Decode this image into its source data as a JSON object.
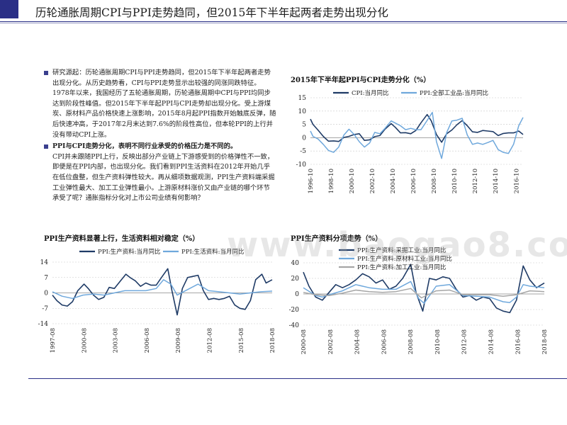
{
  "slide": {
    "title": "历轮通胀周期CPI与PPI走势趋同，但2015年下半年起两者走势出现分化",
    "watermark": "www.baogao8.com"
  },
  "text": {
    "bullet1": "研究源起：历轮通胀周期CPI与PPI走势趋同，但2015年下半年起两者走势出现分化。从历史趋势看，CPI与PPI走势显示出较强的同涨同跌特征。1978年以来，我国经历了五轮通胀周期，历轮通胀周期中CPI与PPI均同步达到阶段性峰值。但2015年下半年起PPI与CPI走势却出现分化。受上游煤炭、原材料产品价格快速上涨影响，2015年8月起PPI指数开始触底反弹，随后快速冲高，于2017年2月末达到7.6%的阶段性高位，但本轮PPI的上行并没有带动CPI上涨。",
    "bullet2_head": "PPI与CPI走势分化，表明不同行业承受的价格压力是不同的。",
    "bullet2_body": "CPI并未跟随PPI上行，反映出部分产业链上下游感受到的价格弹性不一致，即便是在PPI内部，也出现分化。我们看到PPI生活资料在2012年开始几乎在低位盘整，但生产资料弹性较大。再从细项数据观测，PPI生产资料端采掘工业弹性最大、加工工业弹性最小。上游原材料涨价又由产业链的哪个环节承受了呢？通胀指标分化对上市公司业绩有何影响？"
  },
  "chart_data": [
    {
      "type": "line",
      "title": "2015年下半年起PPI与CPI走势分化（%）",
      "legend_position": "top",
      "ylim": [
        -10,
        15
      ],
      "yticks": [
        15,
        10,
        5,
        0,
        -5,
        -10
      ],
      "xticks": [
        "1996-10",
        "1998-10",
        "2000-10",
        "2002-10",
        "2004-10",
        "2006-10",
        "2008-10",
        "2010-10",
        "2012-10",
        "2014-10",
        "2016-10"
      ],
      "x_range": [
        1996.75,
        2017.42
      ],
      "series": [
        {
          "name": "CPI:当月同比",
          "color": "#1f3b66",
          "x": [
            1996.75,
            1997.0,
            1997.5,
            1998.0,
            1998.5,
            1999.0,
            1999.5,
            2000.0,
            2000.5,
            2001.0,
            2001.5,
            2002.0,
            2002.5,
            2003.0,
            2003.5,
            2004.0,
            2004.6,
            2005.0,
            2005.5,
            2006.0,
            2006.5,
            2007.0,
            2007.5,
            2008.1,
            2008.5,
            2009.0,
            2009.5,
            2010.0,
            2010.5,
            2011.0,
            2011.5,
            2012.0,
            2012.5,
            2013.0,
            2013.5,
            2014.0,
            2014.5,
            2015.0,
            2015.5,
            2016.0,
            2016.5,
            2017.0,
            2017.42
          ],
          "y": [
            7.0,
            5.0,
            2.8,
            0.5,
            -1.3,
            -1.2,
            -1.4,
            0.1,
            0.5,
            1.2,
            1.5,
            -1.0,
            -0.8,
            0.4,
            0.8,
            3.2,
            5.3,
            3.9,
            1.8,
            1.9,
            1.5,
            2.7,
            5.6,
            8.7,
            6.3,
            1.2,
            -1.7,
            1.5,
            2.9,
            4.9,
            6.4,
            4.5,
            2.2,
            2.0,
            2.7,
            2.5,
            2.3,
            0.8,
            1.6,
            1.8,
            1.8,
            2.5,
            1.2
          ]
        },
        {
          "name": "PPI:全部工业品:当月同比",
          "color": "#6fa8dc",
          "x": [
            1996.75,
            1997.0,
            1997.5,
            1998.0,
            1998.5,
            1999.0,
            1999.5,
            2000.0,
            2000.5,
            2001.0,
            2001.5,
            2002.0,
            2002.5,
            2003.0,
            2003.5,
            2004.0,
            2004.6,
            2005.0,
            2005.5,
            2006.0,
            2006.5,
            2007.0,
            2007.5,
            2008.1,
            2008.6,
            2009.0,
            2009.5,
            2010.0,
            2010.5,
            2011.0,
            2011.5,
            2012.0,
            2012.5,
            2013.0,
            2013.5,
            2014.0,
            2014.5,
            2015.0,
            2015.5,
            2016.0,
            2016.5,
            2017.0,
            2017.42
          ],
          "y": [
            2.5,
            0.5,
            -0.5,
            -2.5,
            -4.8,
            -5.5,
            -3.5,
            1.0,
            3.2,
            1.2,
            -1.5,
            -3.5,
            -2.0,
            2.0,
            1.5,
            3.5,
            6.3,
            5.5,
            4.5,
            3.0,
            3.5,
            3.0,
            3.0,
            6.5,
            9.5,
            -1.5,
            -7.8,
            2.0,
            6.3,
            6.6,
            7.3,
            1.0,
            -2.5,
            -2.0,
            -2.5,
            -1.8,
            -1.0,
            -4.5,
            -5.5,
            -5.9,
            -2.5,
            4.5,
            7.6
          ]
        }
      ]
    },
    {
      "type": "line",
      "title": "PPI生产资料显著上行，生活资料相对稳定（%）",
      "legend_position": "top",
      "ylim": [
        -14,
        14
      ],
      "yticks": [
        14,
        7,
        0,
        -7,
        -14
      ],
      "xticks": [
        "1997-08",
        "2000-08",
        "2003-08",
        "2006-08",
        "2009-08",
        "2012-08",
        "2015-08",
        "2018-08"
      ],
      "x_range": [
        1997.58,
        2018.58
      ],
      "series": [
        {
          "name": "PPI:生产资料:当月同比",
          "color": "#1f3b66",
          "x": [
            1997.58,
            1998.0,
            1998.5,
            1999.0,
            1999.5,
            2000.0,
            2000.6,
            2001.0,
            2001.5,
            2002.0,
            2002.5,
            2003.0,
            2003.5,
            2004.0,
            2004.6,
            2005.0,
            2005.5,
            2006.0,
            2006.5,
            2007.0,
            2007.5,
            2008.0,
            2008.6,
            2009.0,
            2009.5,
            2010.0,
            2010.5,
            2011.0,
            2011.5,
            2012.0,
            2012.5,
            2013.0,
            2013.5,
            2014.0,
            2014.5,
            2015.0,
            2015.5,
            2016.0,
            2016.5,
            2017.0,
            2017.6,
            2018.0,
            2018.58
          ],
          "y": [
            -1.0,
            -3.5,
            -5.5,
            -6.0,
            -4.0,
            1.0,
            4.0,
            2.0,
            -1.0,
            -3.0,
            -2.0,
            2.5,
            2.0,
            5.0,
            8.5,
            7.0,
            5.5,
            3.0,
            4.5,
            3.5,
            3.5,
            7.0,
            11.0,
            1.0,
            -10.0,
            2.0,
            7.0,
            7.5,
            8.0,
            1.0,
            -3.0,
            -2.5,
            -3.0,
            -2.5,
            -1.5,
            -5.5,
            -7.0,
            -7.5,
            -3.5,
            6.0,
            8.5,
            4.5,
            6.0
          ]
        },
        {
          "name": "PPI:生活资料:当月同比",
          "color": "#6fa8dc",
          "x": [
            1997.58,
            1998.5,
            1999.5,
            2000.5,
            2001.5,
            2002.5,
            2003.5,
            2004.5,
            2005.5,
            2006.5,
            2007.5,
            2008.2,
            2008.9,
            2009.5,
            2010.5,
            2011.5,
            2012.5,
            2013.5,
            2014.5,
            2015.5,
            2016.5,
            2017.5,
            2018.58
          ],
          "y": [
            0.5,
            -1.5,
            -2.5,
            -1.0,
            -0.5,
            -1.0,
            0.0,
            1.0,
            1.0,
            1.0,
            2.0,
            6.0,
            4.0,
            -1.0,
            1.5,
            4.0,
            1.0,
            0.5,
            0.0,
            -0.5,
            0.0,
            0.5,
            0.8
          ]
        }
      ]
    },
    {
      "type": "line",
      "title": "PPI生产资料分项走势（%）",
      "legend_position": "top",
      "ylim": [
        -40,
        40
      ],
      "yticks": [
        40,
        20,
        0,
        -20,
        -40
      ],
      "xticks": [
        "2000-08",
        "2002-08",
        "2004-08",
        "2006-08",
        "2008-08",
        "2010-08",
        "2012-08",
        "2014-08",
        "2016-08",
        "2018-08"
      ],
      "x_range": [
        2000.58,
        2018.58
      ],
      "series": [
        {
          "name": "PPI:生产资料:采掘工业:当月同比",
          "color": "#1f3b66",
          "x": [
            2000.58,
            2001.0,
            2001.5,
            2002.0,
            2002.5,
            2003.0,
            2003.5,
            2004.0,
            2004.5,
            2005.0,
            2005.5,
            2006.0,
            2006.5,
            2007.0,
            2007.5,
            2008.0,
            2008.6,
            2009.0,
            2009.5,
            2010.0,
            2010.5,
            2011.0,
            2011.5,
            2012.0,
            2012.5,
            2013.0,
            2013.5,
            2014.0,
            2014.5,
            2015.0,
            2015.5,
            2016.0,
            2016.5,
            2017.0,
            2017.5,
            2018.0,
            2018.58
          ],
          "y": [
            28.0,
            10.0,
            -4.0,
            -8.0,
            2.0,
            12.0,
            8.0,
            12.0,
            18.0,
            26.0,
            22.0,
            14.0,
            18.0,
            6.0,
            10.0,
            20.0,
            38.0,
            2.0,
            -22.0,
            20.0,
            18.0,
            22.0,
            20.0,
            6.0,
            -4.0,
            -2.0,
            -8.0,
            -4.0,
            -6.0,
            -18.0,
            -22.0,
            -24.0,
            -8.0,
            36.0,
            18.0,
            8.0,
            14.0
          ]
        },
        {
          "name": "PPI:生产资料:原材料工业:当月同比",
          "color": "#6fa8dc",
          "x": [
            2000.58,
            2001.5,
            2002.0,
            2002.5,
            2003.5,
            2004.5,
            2005.5,
            2006.5,
            2007.5,
            2008.6,
            2009.2,
            2009.6,
            2010.5,
            2011.5,
            2012.5,
            2013.5,
            2014.5,
            2015.5,
            2016.0,
            2016.5,
            2017.0,
            2017.5,
            2018.58
          ],
          "y": [
            8.0,
            -2.0,
            -4.0,
            -1.0,
            4.0,
            12.0,
            8.0,
            6.0,
            6.0,
            16.0,
            -6.0,
            -12.0,
            10.0,
            12.0,
            -2.0,
            -3.0,
            -4.0,
            -10.0,
            -11.0,
            -4.0,
            12.0,
            10.0,
            8.0
          ]
        },
        {
          "name": "PPI:生产资料:加工工业:当月同比",
          "color": "#a6a6a6",
          "x": [
            2000.58,
            2001.5,
            2002.5,
            2003.5,
            2004.5,
            2005.5,
            2006.5,
            2007.5,
            2008.6,
            2009.4,
            2010.5,
            2011.5,
            2012.5,
            2013.5,
            2014.5,
            2015.5,
            2016.5,
            2017.5,
            2018.58
          ],
          "y": [
            2.0,
            -1.0,
            -2.0,
            1.0,
            5.0,
            3.0,
            2.0,
            3.0,
            7.0,
            -5.0,
            4.0,
            5.0,
            -1.0,
            -1.0,
            -1.0,
            -3.0,
            -1.0,
            4.0,
            3.0
          ]
        }
      ]
    }
  ]
}
